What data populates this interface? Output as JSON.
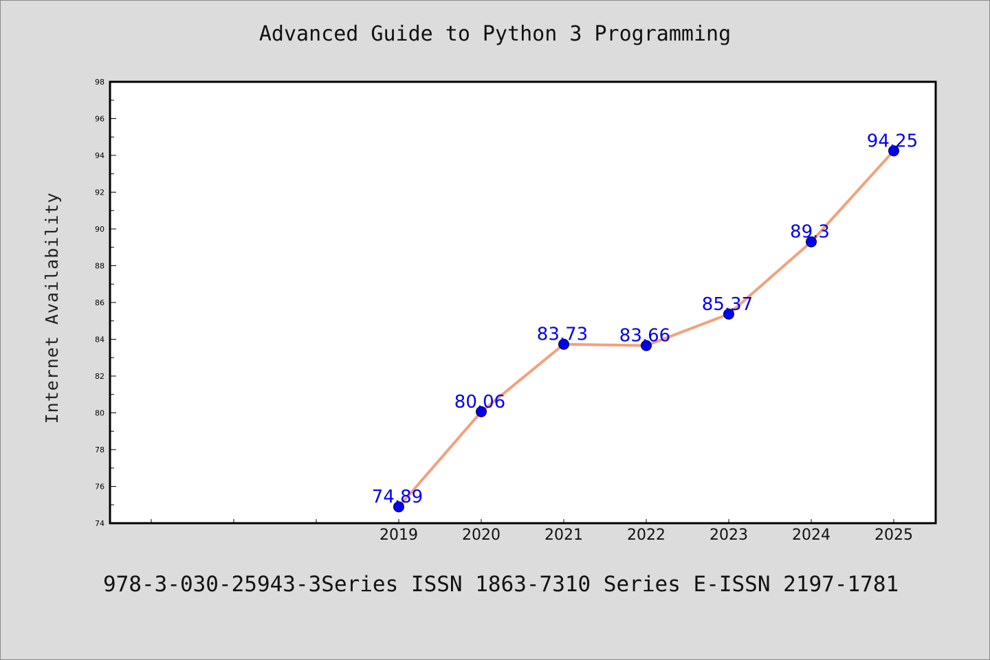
{
  "chart_data": {
    "type": "line",
    "title": "Advanced Guide to Python 3 Programming",
    "xlabel": "",
    "ylabel": "Internet Availability",
    "x": [
      "2019",
      "2020",
      "2021",
      "2022",
      "2023",
      "2024",
      "2025"
    ],
    "series": [
      {
        "values": [
          74.89,
          80.06,
          83.73,
          83.66,
          85.37,
          89.3,
          94.25
        ],
        "line_color": "#f4a07c",
        "marker_color": "#0000ee"
      }
    ],
    "data_labels": [
      "74.89",
      "80.06",
      "83.73",
      "83.66",
      "85.37",
      "89.3",
      "94.25"
    ],
    "data_label_color": "#0000ee",
    "yticks": [
      "74",
      "76",
      "78",
      "80",
      "82",
      "84",
      "86",
      "88",
      "90",
      "92",
      "94",
      "96",
      "98"
    ],
    "ylim": [
      74,
      98
    ],
    "grid": false,
    "legend": "none"
  },
  "footer": {
    "text": "978-3-030-25943-3Series ISSN 1863-7310 Series E-ISSN 2197-1781"
  }
}
